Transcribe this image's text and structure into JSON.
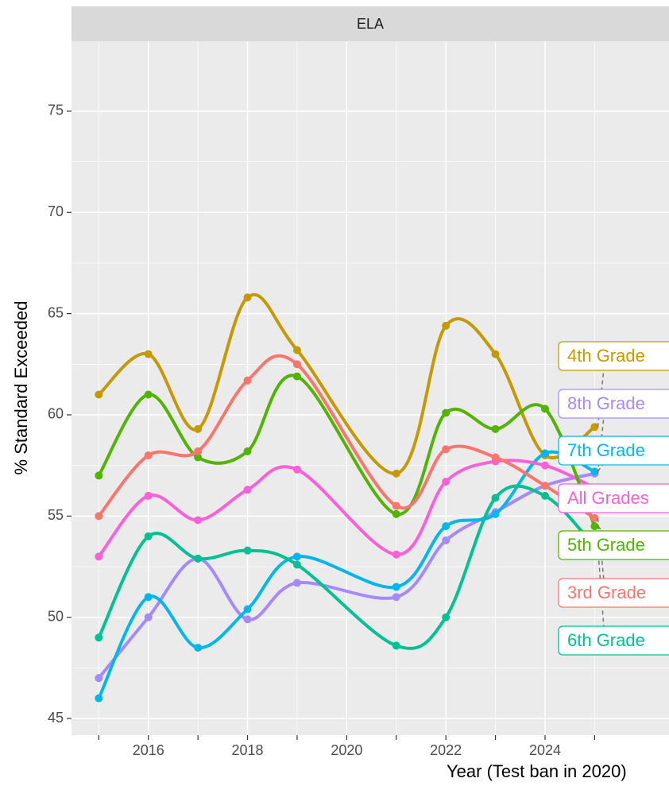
{
  "chart_data": {
    "type": "line",
    "strip": "ELA",
    "xlabel": "Year (Test ban in 2020)",
    "ylabel": "% Standard Exceeded",
    "x": [
      2015,
      2016,
      2017,
      2018,
      2019,
      2021,
      2022,
      2023,
      2024,
      2025
    ],
    "xlim": [
      2014.45,
      2026.5
    ],
    "xticks": [
      2016,
      2018,
      2020,
      2022,
      2024
    ],
    "xminor_ticks": [
      2015,
      2017,
      2019,
      2021,
      2023,
      2025
    ],
    "ylim": [
      44.18,
      78.45
    ],
    "yticks": [
      45,
      50,
      55,
      60,
      65,
      70,
      75
    ],
    "grid": true,
    "series": [
      {
        "name": "4th Grade",
        "color": "#C49A00",
        "values": [
          61,
          63,
          59.3,
          65.8,
          63.2,
          57.1,
          64.4,
          63,
          58,
          59.4
        ]
      },
      {
        "name": "8th Grade",
        "color": "#A58AFF",
        "values": [
          47,
          50,
          52.9,
          49.9,
          51.7,
          51,
          53.8,
          55.2,
          56.5,
          57.1
        ]
      },
      {
        "name": "7th Grade",
        "color": "#00B6EB",
        "values": [
          46,
          51,
          48.5,
          50.4,
          53,
          51.5,
          54.5,
          55.1,
          58.1,
          57.2
        ]
      },
      {
        "name": "All Grades",
        "color": "#FB61D7",
        "values": [
          53,
          56,
          54.8,
          56.3,
          57.3,
          53.1,
          56.7,
          57.7,
          57.5,
          56.4
        ]
      },
      {
        "name": "5th Grade",
        "color": "#53B400",
        "values": [
          57,
          61,
          57.9,
          58.2,
          61.9,
          55.1,
          60.1,
          59.3,
          60.3,
          54.5
        ]
      },
      {
        "name": "3rd Grade",
        "color": "#F8766D",
        "values": [
          55,
          58,
          58.2,
          61.7,
          62.5,
          55.5,
          58.3,
          57.9,
          56.5,
          54.9
        ]
      },
      {
        "name": "6th Grade",
        "color": "#00C094",
        "values": [
          49,
          54,
          52.9,
          53.3,
          52.6,
          48.6,
          50,
          55.9,
          56,
          53.5
        ]
      }
    ]
  }
}
